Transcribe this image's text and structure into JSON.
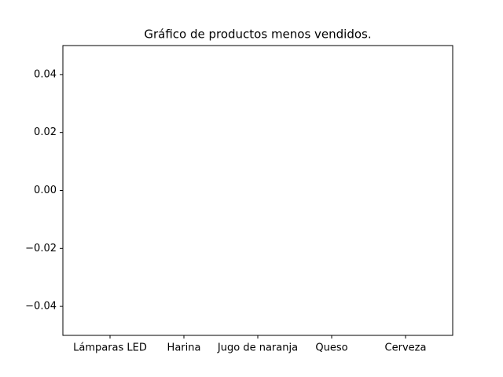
{
  "chart_data": {
    "type": "bar",
    "title": "Gráfico de productos menos vendidos.",
    "categories": [
      "Lámparas LED",
      "Harina",
      "Jugo de naranja",
      "Queso",
      "Cerveza"
    ],
    "values": [
      0,
      0,
      0,
      0,
      0
    ],
    "color": "#1f77b4",
    "ylim": [
      -0.05,
      0.05
    ],
    "yticks": [
      {
        "value": -0.04,
        "label": "−0.04"
      },
      {
        "value": -0.02,
        "label": "−0.02"
      },
      {
        "value": 0,
        "label": "0.00"
      },
      0.02,
      0.04
    ],
    "grid": false
  }
}
